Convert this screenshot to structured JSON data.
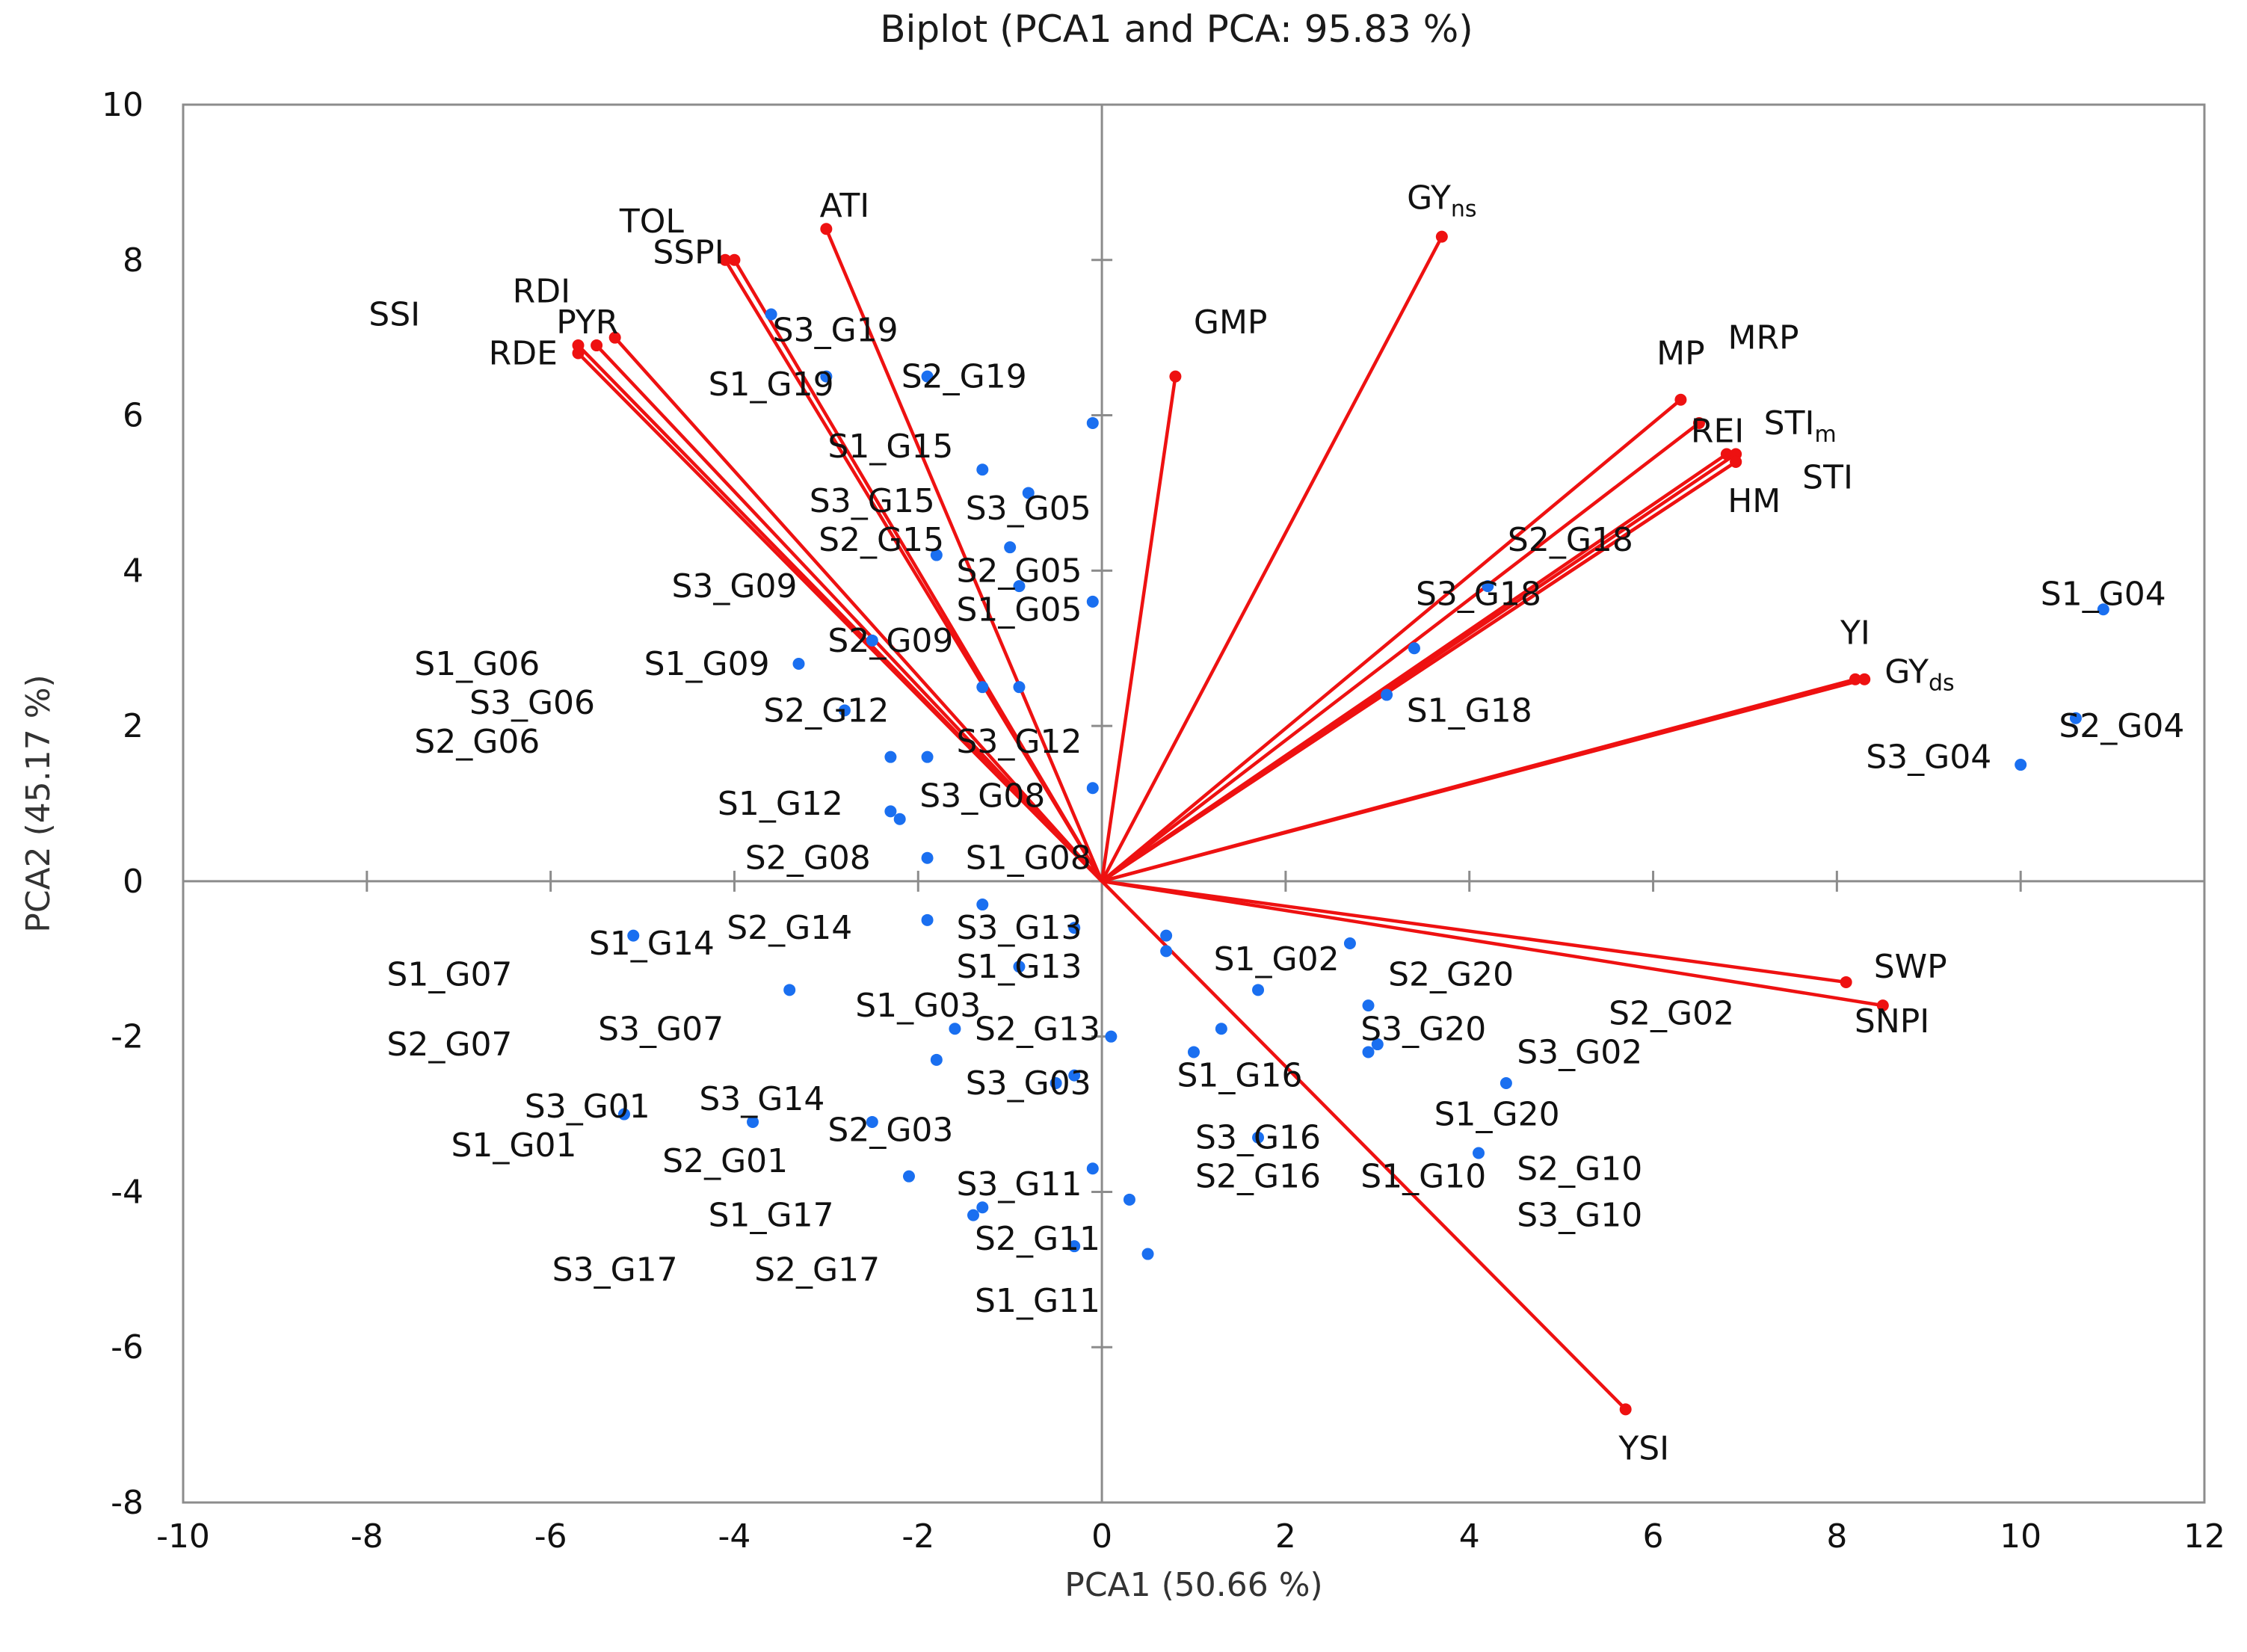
{
  "chart_data": {
    "type": "scatter",
    "title": "Biplot (PCA1 and PCA: 95.83 %)",
    "xlabel": "PCA1 (50.66 %)",
    "ylabel": "PCA2 (45.17 %)",
    "xlim": [
      -10,
      12
    ],
    "ylim": [
      -8,
      10
    ],
    "x_ticks": [
      -10,
      -8,
      -6,
      -4,
      -2,
      0,
      2,
      4,
      6,
      8,
      10,
      12
    ],
    "y_ticks": [
      -8,
      -6,
      -4,
      -2,
      0,
      2,
      4,
      6,
      8,
      10
    ],
    "grid": false,
    "colors": {
      "vectors": "#ee1111",
      "points": "#1a6ff0",
      "axes": "#8c8c8c"
    },
    "vectors": [
      {
        "name": "TOL",
        "x": -4.1,
        "y": 8.0,
        "lx": -4.9,
        "ly": 8.5
      },
      {
        "name": "SSPI",
        "x": -4.0,
        "y": 8.0,
        "lx": -4.5,
        "ly": 8.1
      },
      {
        "name": "ATI",
        "x": -3.0,
        "y": 8.4,
        "lx": -2.8,
        "ly": 8.7
      },
      {
        "name": "SSI",
        "x": -5.7,
        "y": 6.8,
        "lx": -7.7,
        "ly": 7.3
      },
      {
        "name": "RDI",
        "x": -5.5,
        "y": 6.9,
        "lx": -6.1,
        "ly": 7.6
      },
      {
        "name": "PYR",
        "x": -5.3,
        "y": 7.0,
        "lx": -5.6,
        "ly": 7.2
      },
      {
        "name": "RDE",
        "x": -5.7,
        "y": 6.9,
        "lx": -6.3,
        "ly": 6.8
      },
      {
        "name": "GMP",
        "x": 0.8,
        "y": 6.5,
        "lx": 1.4,
        "ly": 7.2
      },
      {
        "name": "GY",
        "sub": "ns",
        "x": 3.7,
        "y": 8.3,
        "lx": 3.7,
        "ly": 8.8
      },
      {
        "name": "MP",
        "x": 6.3,
        "y": 6.2,
        "lx": 6.3,
        "ly": 6.8
      },
      {
        "name": "MRP",
        "x": 6.5,
        "y": 5.9,
        "lx": 7.2,
        "ly": 7.0
      },
      {
        "name": "REI",
        "x": 6.8,
        "y": 5.5,
        "lx": 6.7,
        "ly": 5.8
      },
      {
        "name": "STI",
        "sub": "m",
        "x": 6.9,
        "y": 5.5,
        "lx": 7.6,
        "ly": 5.9
      },
      {
        "name": "STI",
        "x": 6.9,
        "y": 5.4,
        "lx": 7.9,
        "ly": 5.2
      },
      {
        "name": "HM",
        "x": 6.9,
        "y": 5.4,
        "lx": 7.1,
        "ly": 4.9
      },
      {
        "name": "YI",
        "x": 8.2,
        "y": 2.6,
        "lx": 8.2,
        "ly": 3.2
      },
      {
        "name": "GY",
        "sub": "ds",
        "x": 8.3,
        "y": 2.6,
        "lx": 8.9,
        "ly": 2.7
      },
      {
        "name": "SWP",
        "x": 8.1,
        "y": -1.3,
        "lx": 8.8,
        "ly": -1.1
      },
      {
        "name": "SNPI",
        "x": 8.5,
        "y": -1.6,
        "lx": 8.6,
        "ly": -1.8
      },
      {
        "name": "YSI",
        "x": 5.7,
        "y": -6.8,
        "lx": 5.9,
        "ly": -7.3
      }
    ],
    "points": [
      {
        "name": "S1_G04",
        "x": 10.9,
        "y": 3.5,
        "lx": 10.9,
        "ly": 3.7
      },
      {
        "name": "S2_G04",
        "x": 10.6,
        "y": 2.1,
        "lx": 11.1,
        "ly": 2.0
      },
      {
        "name": "S3_G04",
        "x": 10.0,
        "y": 1.5,
        "lx": 9.0,
        "ly": 1.6
      },
      {
        "name": "S2_G18",
        "x": 4.2,
        "y": 3.8,
        "lx": 5.1,
        "ly": 4.4
      },
      {
        "name": "S3_G18",
        "x": 3.4,
        "y": 3.0,
        "lx": 4.1,
        "ly": 3.7
      },
      {
        "name": "S1_G18",
        "x": 3.1,
        "y": 2.4,
        "lx": 4.0,
        "ly": 2.2
      },
      {
        "name": "S3_G19",
        "x": -3.6,
        "y": 7.3,
        "lx": -2.9,
        "ly": 7.1
      },
      {
        "name": "S1_G19",
        "x": -3.0,
        "y": 6.5,
        "lx": -3.6,
        "ly": 6.4
      },
      {
        "name": "S2_G19",
        "x": -1.9,
        "y": 6.5,
        "lx": -1.5,
        "ly": 6.5
      },
      {
        "name": "S1_G15",
        "x": -0.1,
        "y": 5.9,
        "lx": -2.3,
        "ly": 5.6
      },
      {
        "name": "S3_G15",
        "x": -1.3,
        "y": 5.3,
        "lx": -2.5,
        "ly": 4.9
      },
      {
        "name": "S3_G05",
        "x": -0.8,
        "y": 5.0,
        "lx": -0.8,
        "ly": 4.8
      },
      {
        "name": "S2_G15",
        "x": -1.8,
        "y": 4.2,
        "lx": -2.4,
        "ly": 4.4
      },
      {
        "name": "S2_G05",
        "x": -1.0,
        "y": 4.3,
        "lx": -0.9,
        "ly": 4.0
      },
      {
        "name": "S3_G09",
        "x": -2.5,
        "y": 3.1,
        "lx": -4.0,
        "ly": 3.8
      },
      {
        "name": "S1_G05",
        "x": -0.9,
        "y": 3.8,
        "lx": -0.9,
        "ly": 3.5
      },
      {
        "name": "S2_G09",
        "x": -1.3,
        "y": 2.5,
        "lx": -2.3,
        "ly": 3.1
      },
      {
        "name": "S1_G06",
        "x": -0.1,
        "y": 3.6,
        "lx": -6.8,
        "ly": 2.8
      },
      {
        "name": "S1_G09",
        "x": -3.3,
        "y": 2.8,
        "lx": -4.3,
        "ly": 2.8
      },
      {
        "name": "S3_G06",
        "x": -0.9,
        "y": 2.5,
        "lx": -6.2,
        "ly": 2.3
      },
      {
        "name": "S2_G12",
        "x": -2.8,
        "y": 2.2,
        "lx": -3.0,
        "ly": 2.2
      },
      {
        "name": "S2_G06",
        "x": -2.3,
        "y": 1.6,
        "lx": -6.8,
        "ly": 1.8
      },
      {
        "name": "S3_G12",
        "x": -1.9,
        "y": 1.6,
        "lx": -0.9,
        "ly": 1.8
      },
      {
        "name": "S1_G12",
        "x": -2.3,
        "y": 0.9,
        "lx": -3.5,
        "ly": 1.0
      },
      {
        "name": "S3_G08",
        "x": -0.1,
        "y": 1.2,
        "lx": -1.3,
        "ly": 1.1
      },
      {
        "name": "S2_G08",
        "x": -2.2,
        "y": 0.8,
        "lx": -3.2,
        "ly": 0.3
      },
      {
        "name": "S1_G08",
        "x": -1.9,
        "y": 0.3,
        "lx": -0.8,
        "ly": 0.3
      },
      {
        "name": "S1_G14",
        "x": -5.1,
        "y": -0.7,
        "lx": -4.9,
        "ly": -0.8
      },
      {
        "name": "S2_G14",
        "x": -1.9,
        "y": -0.5,
        "lx": -3.4,
        "ly": -0.6
      },
      {
        "name": "S3_G13",
        "x": -1.3,
        "y": -0.3,
        "lx": -0.9,
        "ly": -0.6
      },
      {
        "name": "S1_G13",
        "x": -0.9,
        "y": -1.1,
        "lx": -0.9,
        "ly": -1.1
      },
      {
        "name": "S1_G07",
        "x": -3.4,
        "y": -1.4,
        "lx": -7.1,
        "ly": -1.2
      },
      {
        "name": "S1_G03",
        "x": -0.3,
        "y": -0.6,
        "lx": -2.0,
        "ly": -1.6
      },
      {
        "name": "S3_G07",
        "x": -1.6,
        "y": -1.9,
        "lx": -4.8,
        "ly": -1.9
      },
      {
        "name": "S2_G13",
        "x": 0.1,
        "y": -2.0,
        "lx": -0.7,
        "ly": -1.9
      },
      {
        "name": "S2_G07",
        "x": -1.8,
        "y": -2.3,
        "lx": -7.1,
        "ly": -2.1
      },
      {
        "name": "S3_G03",
        "x": -0.5,
        "y": -2.6,
        "lx": -0.8,
        "ly": -2.6
      },
      {
        "name": "S3_G14",
        "x": -2.5,
        "y": -3.1,
        "lx": -3.7,
        "ly": -2.8
      },
      {
        "name": "S3_G01",
        "x": -5.2,
        "y": -3.0,
        "lx": -5.6,
        "ly": -2.9
      },
      {
        "name": "S2_G03",
        "x": -0.3,
        "y": -2.5,
        "lx": -2.3,
        "ly": -3.2
      },
      {
        "name": "S2_G01",
        "x": -3.8,
        "y": -3.1,
        "lx": -4.1,
        "ly": -3.6
      },
      {
        "name": "S1_G01",
        "x": -2.1,
        "y": -3.8,
        "lx": -6.4,
        "ly": -3.4
      },
      {
        "name": "S3_G11",
        "x": -0.1,
        "y": -3.7,
        "lx": -0.9,
        "ly": -3.9
      },
      {
        "name": "S1_G17",
        "x": -1.3,
        "y": -4.2,
        "lx": -3.6,
        "ly": -4.3
      },
      {
        "name": "S2_G11",
        "x": 0.3,
        "y": -4.1,
        "lx": -0.7,
        "ly": -4.6
      },
      {
        "name": "S2_G17",
        "x": -1.4,
        "y": -4.3,
        "lx": -3.1,
        "ly": -5.0
      },
      {
        "name": "S3_G17",
        "x": -0.3,
        "y": -4.7,
        "lx": -5.3,
        "ly": -5.0
      },
      {
        "name": "S1_G11",
        "x": 0.5,
        "y": -4.8,
        "lx": -0.7,
        "ly": -5.4
      },
      {
        "name": "S1_G02",
        "x": 0.7,
        "y": -0.7,
        "lx": 1.9,
        "ly": -1.0
      },
      {
        "name": "S2_G20",
        "x": 2.7,
        "y": -0.8,
        "lx": 3.8,
        "ly": -1.2
      },
      {
        "name": "S3_G20",
        "x": 1.7,
        "y": -1.4,
        "lx": 3.5,
        "ly": -1.9
      },
      {
        "name": "S2_G02",
        "x": 2.9,
        "y": -1.6,
        "lx": 6.2,
        "ly": -1.7
      },
      {
        "name": "S3_G02",
        "x": 3.0,
        "y": -2.1,
        "lx": 5.2,
        "ly": -2.2
      },
      {
        "name": "S1_G16",
        "x": 1.0,
        "y": -2.2,
        "lx": 1.5,
        "ly": -2.5
      },
      {
        "name": "S1_G20",
        "x": 4.4,
        "y": -2.6,
        "lx": 4.3,
        "ly": -3.0
      },
      {
        "name": "S3_G16",
        "x": 1.7,
        "y": -3.3,
        "lx": 1.7,
        "ly": -3.3
      },
      {
        "name": "S2_G16",
        "x": 1.3,
        "y": -1.9,
        "lx": 1.7,
        "ly": -3.8
      },
      {
        "name": "S1_G10",
        "x": 4.1,
        "y": -3.5,
        "lx": 3.5,
        "ly": -3.8
      },
      {
        "name": "S2_G10",
        "x": 0.7,
        "y": -0.9,
        "lx": 5.2,
        "ly": -3.7
      },
      {
        "name": "S3_G10",
        "x": 2.9,
        "y": -2.2,
        "lx": 5.2,
        "ly": -4.3
      }
    ]
  }
}
